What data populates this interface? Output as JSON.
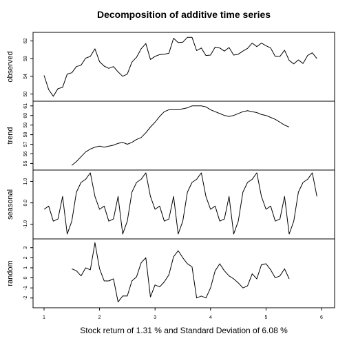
{
  "chart_data": {
    "type": "line",
    "title": "Decomposition of additive time series",
    "xlabel": "Stock return of  1.31 % and Standard Deviation of  6.08 %",
    "x_ticks": [
      "1",
      "2",
      "3",
      "4",
      "5",
      "6"
    ],
    "xlim": [
      1,
      6
    ],
    "frequency": 12,
    "panels": [
      {
        "name": "observed",
        "ylabel": "observed",
        "ylim": [
          49,
          63.3
        ],
        "yticks": [
          "50",
          "54",
          "58",
          "62"
        ],
        "ytick_values": [
          50,
          54,
          58,
          62
        ],
        "x": [
          1.0,
          1.0833,
          1.1667,
          1.25,
          1.3333,
          1.4167,
          1.5,
          1.5833,
          1.6667,
          1.75,
          1.8333,
          1.9167,
          2.0,
          2.0833,
          2.1667,
          2.25,
          2.3333,
          2.4167,
          2.5,
          2.5833,
          2.6667,
          2.75,
          2.8333,
          2.9167,
          3.0,
          3.0833,
          3.1667,
          3.25,
          3.3333,
          3.4167,
          3.5,
          3.5833,
          3.6667,
          3.75,
          3.8333,
          3.9167,
          4.0,
          4.0833,
          4.1667,
          4.25,
          4.3333,
          4.4167,
          4.5,
          4.5833,
          4.6667,
          4.75,
          4.8333,
          4.9167,
          5.0,
          5.0833,
          5.1667,
          5.25,
          5.3333,
          5.4167,
          5.5,
          5.5833,
          5.6667,
          5.75,
          5.8333,
          5.9167
        ],
        "values": [
          54.2,
          51.0,
          49.5,
          51.2,
          51.5,
          54.5,
          54.8,
          56.2,
          56.5,
          58.1,
          58.5,
          60.2,
          57.3,
          56.3,
          55.8,
          56.2,
          55.0,
          54.0,
          54.5,
          57.2,
          58.3,
          60.2,
          61.4,
          57.8,
          58.5,
          58.9,
          59.0,
          59.2,
          62.6,
          61.6,
          61.7,
          62.8,
          62.8,
          59.8,
          60.4,
          58.7,
          58.8,
          60.6,
          60.4,
          59.7,
          60.5,
          58.8,
          59.0,
          59.7,
          60.3,
          61.5,
          60.7,
          61.5,
          60.9,
          60.4,
          58.5,
          58.5,
          59.9,
          57.6,
          56.8,
          57.7,
          56.9,
          58.7,
          59.3,
          58.0
        ]
      },
      {
        "name": "trend",
        "ylabel": "trend",
        "ylim": [
          54.6,
          61.2
        ],
        "yticks": [
          "55",
          "56",
          "57",
          "58",
          "59",
          "60",
          "61"
        ],
        "ytick_values": [
          55,
          56,
          57,
          58,
          59,
          60,
          61
        ],
        "x": [
          1.5,
          1.5833,
          1.6667,
          1.75,
          1.8333,
          1.9167,
          2.0,
          2.0833,
          2.1667,
          2.25,
          2.3333,
          2.4167,
          2.5,
          2.5833,
          2.6667,
          2.75,
          2.8333,
          2.9167,
          3.0,
          3.0833,
          3.1667,
          3.25,
          3.3333,
          3.4167,
          3.5,
          3.5833,
          3.6667,
          3.75,
          3.8333,
          3.9167,
          4.0,
          4.0833,
          4.1667,
          4.25,
          4.3333,
          4.4167,
          4.5,
          4.5833,
          4.6667,
          4.75,
          4.8333,
          4.9167,
          5.0,
          5.0833,
          5.1667,
          5.25,
          5.3333,
          5.4167
        ],
        "values": [
          54.8,
          55.2,
          55.7,
          56.2,
          56.5,
          56.7,
          56.8,
          56.7,
          56.8,
          56.9,
          57.1,
          57.2,
          57.0,
          57.2,
          57.5,
          57.7,
          58.2,
          58.8,
          59.3,
          59.9,
          60.4,
          60.6,
          60.6,
          60.6,
          60.7,
          60.8,
          61.0,
          61.0,
          61.0,
          60.9,
          60.6,
          60.4,
          60.2,
          60.0,
          59.9,
          60.0,
          60.2,
          60.4,
          60.5,
          60.4,
          60.3,
          60.1,
          60.0,
          59.8,
          59.6,
          59.3,
          59.0,
          58.8
        ]
      },
      {
        "name": "seasonal",
        "ylabel": "seasonal",
        "ylim": [
          -1.55,
          1.4
        ],
        "yticks": [
          "-1.0",
          "0.0",
          "1.0"
        ],
        "ytick_values": [
          -1.0,
          0.0,
          1.0
        ],
        "x": [
          1.0,
          1.0833,
          1.1667,
          1.25,
          1.3333,
          1.4167,
          1.5,
          1.5833,
          1.6667,
          1.75,
          1.8333,
          1.9167,
          2.0,
          2.0833,
          2.1667,
          2.25,
          2.3333,
          2.4167,
          2.5,
          2.5833,
          2.6667,
          2.75,
          2.8333,
          2.9167,
          3.0,
          3.0833,
          3.1667,
          3.25,
          3.3333,
          3.4167,
          3.5,
          3.5833,
          3.6667,
          3.75,
          3.8333,
          3.9167,
          4.0,
          4.0833,
          4.1667,
          4.25,
          4.3333,
          4.4167,
          4.5,
          4.5833,
          4.6667,
          4.75,
          4.8333,
          4.9167,
          5.0,
          5.0833,
          5.1667,
          5.25,
          5.3333,
          5.4167,
          5.5,
          5.5833,
          5.6667,
          5.75,
          5.8333,
          5.9167
        ],
        "values": [
          -0.3,
          -0.15,
          -0.85,
          -0.75,
          0.3,
          -1.45,
          -0.85,
          0.5,
          0.95,
          1.1,
          1.4,
          0.3,
          -0.3,
          -0.15,
          -0.85,
          -0.75,
          0.3,
          -1.45,
          -0.85,
          0.5,
          0.95,
          1.1,
          1.4,
          0.3,
          -0.3,
          -0.15,
          -0.85,
          -0.75,
          0.3,
          -1.45,
          -0.85,
          0.5,
          0.95,
          1.1,
          1.4,
          0.3,
          -0.3,
          -0.15,
          -0.85,
          -0.75,
          0.3,
          -1.45,
          -0.85,
          0.5,
          0.95,
          1.1,
          1.4,
          0.3,
          -0.3,
          -0.15,
          -0.85,
          -0.75,
          0.3,
          -1.45,
          -0.85,
          0.5,
          0.95,
          1.1,
          1.4,
          0.3
        ]
      },
      {
        "name": "random",
        "ylabel": "random",
        "ylim": [
          -2.7,
          3.6
        ],
        "yticks": [
          "-2",
          "-1",
          "0",
          "1",
          "2",
          "3"
        ],
        "ytick_values": [
          -2,
          -1,
          0,
          1,
          2,
          3
        ],
        "x": [
          1.5,
          1.5833,
          1.6667,
          1.75,
          1.8333,
          1.9167,
          2.0,
          2.0833,
          2.1667,
          2.25,
          2.3333,
          2.4167,
          2.5,
          2.5833,
          2.6667,
          2.75,
          2.8333,
          2.9167,
          3.0,
          3.0833,
          3.1667,
          3.25,
          3.3333,
          3.4167,
          3.5,
          3.5833,
          3.6667,
          3.75,
          3.8333,
          3.9167,
          4.0,
          4.0833,
          4.1667,
          4.25,
          4.3333,
          4.4167,
          4.5,
          4.5833,
          4.6667,
          4.75,
          4.8333,
          4.9167,
          5.0,
          5.0833,
          5.1667,
          5.25,
          5.3333,
          5.4167
        ],
        "values": [
          0.9,
          0.7,
          0.2,
          1.0,
          0.8,
          3.5,
          0.9,
          -0.3,
          -0.3,
          -0.1,
          -2.4,
          -1.8,
          -1.8,
          -0.3,
          0.1,
          1.5,
          2.0,
          -1.9,
          -0.7,
          -0.9,
          -0.4,
          0.3,
          2.1,
          2.7,
          2.0,
          1.4,
          1.1,
          -2.0,
          -1.8,
          -2.0,
          -1.0,
          0.7,
          1.4,
          0.7,
          0.2,
          -0.1,
          -0.5,
          -1.0,
          -0.8,
          0.4,
          -0.1,
          1.3,
          1.4,
          0.8,
          0.0,
          0.2,
          0.9,
          -0.1
        ]
      }
    ]
  }
}
